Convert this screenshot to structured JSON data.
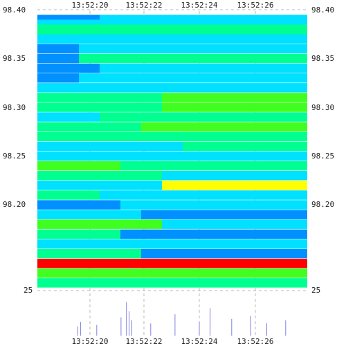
{
  "chart_data": {
    "type": "heatmap",
    "title": "",
    "xlabel": "",
    "ylabel": "",
    "x_ticks": [
      "13:52:20",
      "13:52:22",
      "13:52:24",
      "13:52:26"
    ],
    "y_ticks": [
      {
        "value": 98.4,
        "label": "98.40"
      },
      {
        "value": 98.35,
        "label": "98.35"
      },
      {
        "value": 98.3,
        "label": "98.30"
      },
      {
        "value": 98.25,
        "label": "98.25"
      },
      {
        "value": 98.2,
        "label": "98.20"
      }
    ],
    "volume_tick": {
      "value": 25,
      "label": "25"
    },
    "xlim": [
      "13:52:18.6",
      "13:52:28.4"
    ],
    "ylim": [
      98.15,
      98.4
    ],
    "grid": true,
    "colormap": [
      "#0000ff",
      "#0090ff",
      "#00e0ff",
      "#00ff90",
      "#40ff20",
      "#ffff00",
      "#ff9000",
      "#ff0000"
    ],
    "heatmap_rows": [
      {
        "price": 98.39,
        "cells": [
          {
            "t0": 0.0,
            "t1": 0.3,
            "v": 0.1
          },
          {
            "t0": 0.3,
            "t1": 1.3,
            "v": 0.3
          }
        ]
      },
      {
        "price": 98.385,
        "cells": [
          {
            "t0": 0.0,
            "t1": 1.3,
            "v": 0.35
          }
        ]
      },
      {
        "price": 98.38,
        "cells": [
          {
            "t0": 0.0,
            "t1": 1.3,
            "v": 0.4
          }
        ]
      },
      {
        "price": 98.375,
        "cells": [
          {
            "t0": 0.0,
            "t1": 1.3,
            "v": 0.45
          }
        ]
      },
      {
        "price": 98.37,
        "cells": [
          {
            "t0": 0.0,
            "t1": 1.3,
            "v": 0.35
          }
        ]
      },
      {
        "price": 98.36,
        "cells": [
          {
            "t0": 0.0,
            "t1": 0.2,
            "v": 0.2
          },
          {
            "t0": 0.2,
            "t1": 1.3,
            "v": 0.35
          }
        ]
      },
      {
        "price": 98.35,
        "cells": [
          {
            "t0": 0.0,
            "t1": 0.2,
            "v": 0.2
          },
          {
            "t0": 0.2,
            "t1": 1.3,
            "v": 0.4
          }
        ]
      },
      {
        "price": 98.34,
        "cells": [
          {
            "t0": 0.0,
            "t1": 0.3,
            "v": 0.2
          },
          {
            "t0": 0.3,
            "t1": 1.3,
            "v": 0.35
          }
        ]
      },
      {
        "price": 98.33,
        "cells": [
          {
            "t0": 0.0,
            "t1": 0.2,
            "v": 0.15
          },
          {
            "t0": 0.2,
            "t1": 1.3,
            "v": 0.3
          }
        ]
      },
      {
        "price": 98.32,
        "cells": [
          {
            "t0": 0.0,
            "t1": 1.3,
            "v": 0.35
          }
        ]
      },
      {
        "price": 98.31,
        "cells": [
          {
            "t0": 0.0,
            "t1": 0.6,
            "v": 0.45
          },
          {
            "t0": 0.6,
            "t1": 1.3,
            "v": 0.5
          }
        ]
      },
      {
        "price": 98.3,
        "cells": [
          {
            "t0": 0.0,
            "t1": 0.6,
            "v": 0.4
          },
          {
            "t0": 0.6,
            "t1": 1.3,
            "v": 0.55
          }
        ]
      },
      {
        "price": 98.29,
        "cells": [
          {
            "t0": 0.0,
            "t1": 0.3,
            "v": 0.35
          },
          {
            "t0": 0.3,
            "t1": 1.3,
            "v": 0.45
          }
        ]
      },
      {
        "price": 98.28,
        "cells": [
          {
            "t0": 0.0,
            "t1": 0.5,
            "v": 0.4
          },
          {
            "t0": 0.5,
            "t1": 1.3,
            "v": 0.5
          }
        ]
      },
      {
        "price": 98.27,
        "cells": [
          {
            "t0": 0.0,
            "t1": 0.3,
            "v": 0.45
          },
          {
            "t0": 0.3,
            "t1": 1.3,
            "v": 0.4
          }
        ]
      },
      {
        "price": 98.26,
        "cells": [
          {
            "t0": 0.0,
            "t1": 0.7,
            "v": 0.3
          },
          {
            "t0": 0.7,
            "t1": 1.3,
            "v": 0.4
          }
        ]
      },
      {
        "price": 98.25,
        "cells": [
          {
            "t0": 0.0,
            "t1": 0.5,
            "v": 0.3
          },
          {
            "t0": 0.5,
            "t1": 1.3,
            "v": 0.35
          }
        ]
      },
      {
        "price": 98.24,
        "cells": [
          {
            "t0": 0.0,
            "t1": 0.4,
            "v": 0.5
          },
          {
            "t0": 0.4,
            "t1": 1.3,
            "v": 0.4
          }
        ]
      },
      {
        "price": 98.23,
        "cells": [
          {
            "t0": 0.0,
            "t1": 0.6,
            "v": 0.4
          },
          {
            "t0": 0.6,
            "t1": 1.3,
            "v": 0.35
          }
        ]
      },
      {
        "price": 98.22,
        "cells": [
          {
            "t0": 0.0,
            "t1": 0.6,
            "v": 0.3
          },
          {
            "t0": 0.6,
            "t1": 1.3,
            "v": 0.7
          }
        ]
      },
      {
        "price": 98.21,
        "cells": [
          {
            "t0": 0.0,
            "t1": 0.3,
            "v": 0.4
          },
          {
            "t0": 0.3,
            "t1": 1.3,
            "v": 0.35
          }
        ]
      },
      {
        "price": 98.2,
        "cells": [
          {
            "t0": 0.0,
            "t1": 0.4,
            "v": 0.2
          },
          {
            "t0": 0.4,
            "t1": 1.3,
            "v": 0.3
          }
        ]
      },
      {
        "price": 98.19,
        "cells": [
          {
            "t0": 0.0,
            "t1": 0.5,
            "v": 0.25
          },
          {
            "t0": 0.5,
            "t1": 1.3,
            "v": 0.2
          }
        ]
      },
      {
        "price": 98.18,
        "cells": [
          {
            "t0": 0.0,
            "t1": 0.6,
            "v": 0.5
          },
          {
            "t0": 0.6,
            "t1": 1.3,
            "v": 0.35
          }
        ]
      },
      {
        "price": 98.17,
        "cells": [
          {
            "t0": 0.0,
            "t1": 0.4,
            "v": 0.4
          },
          {
            "t0": 0.4,
            "t1": 1.3,
            "v": 0.2
          }
        ]
      },
      {
        "price": 98.16,
        "cells": [
          {
            "t0": 0.0,
            "t1": 0.3,
            "v": 0.35
          },
          {
            "t0": 0.3,
            "t1": 1.3,
            "v": 0.25
          }
        ]
      },
      {
        "price": 98.15,
        "cells": [
          {
            "t0": 0.0,
            "t1": 0.5,
            "v": 0.4
          },
          {
            "t0": 0.5,
            "t1": 1.3,
            "v": 0.2
          }
        ]
      },
      {
        "price": 98.14,
        "cells": [
          {
            "t0": 0.0,
            "t1": 1.3,
            "v": 0.98
          }
        ]
      },
      {
        "price": 98.13,
        "cells": [
          {
            "t0": 0.0,
            "t1": 1.3,
            "v": 0.6
          }
        ]
      },
      {
        "price": 98.12,
        "cells": [
          {
            "t0": 0.0,
            "t1": 1.3,
            "v": 0.4
          }
        ]
      }
    ],
    "volume_spikes": [
      {
        "t": 1.5,
        "v": 6
      },
      {
        "t": 1.6,
        "v": 9
      },
      {
        "t": 2.2,
        "v": 7
      },
      {
        "t": 3.1,
        "v": 12
      },
      {
        "t": 3.3,
        "v": 22
      },
      {
        "t": 3.4,
        "v": 16
      },
      {
        "t": 3.5,
        "v": 10
      },
      {
        "t": 4.2,
        "v": 8
      },
      {
        "t": 5.1,
        "v": 14
      },
      {
        "t": 6.0,
        "v": 9
      },
      {
        "t": 6.4,
        "v": 18
      },
      {
        "t": 7.2,
        "v": 11
      },
      {
        "t": 7.9,
        "v": 13
      },
      {
        "t": 8.5,
        "v": 8
      },
      {
        "t": 9.2,
        "v": 10
      }
    ]
  }
}
